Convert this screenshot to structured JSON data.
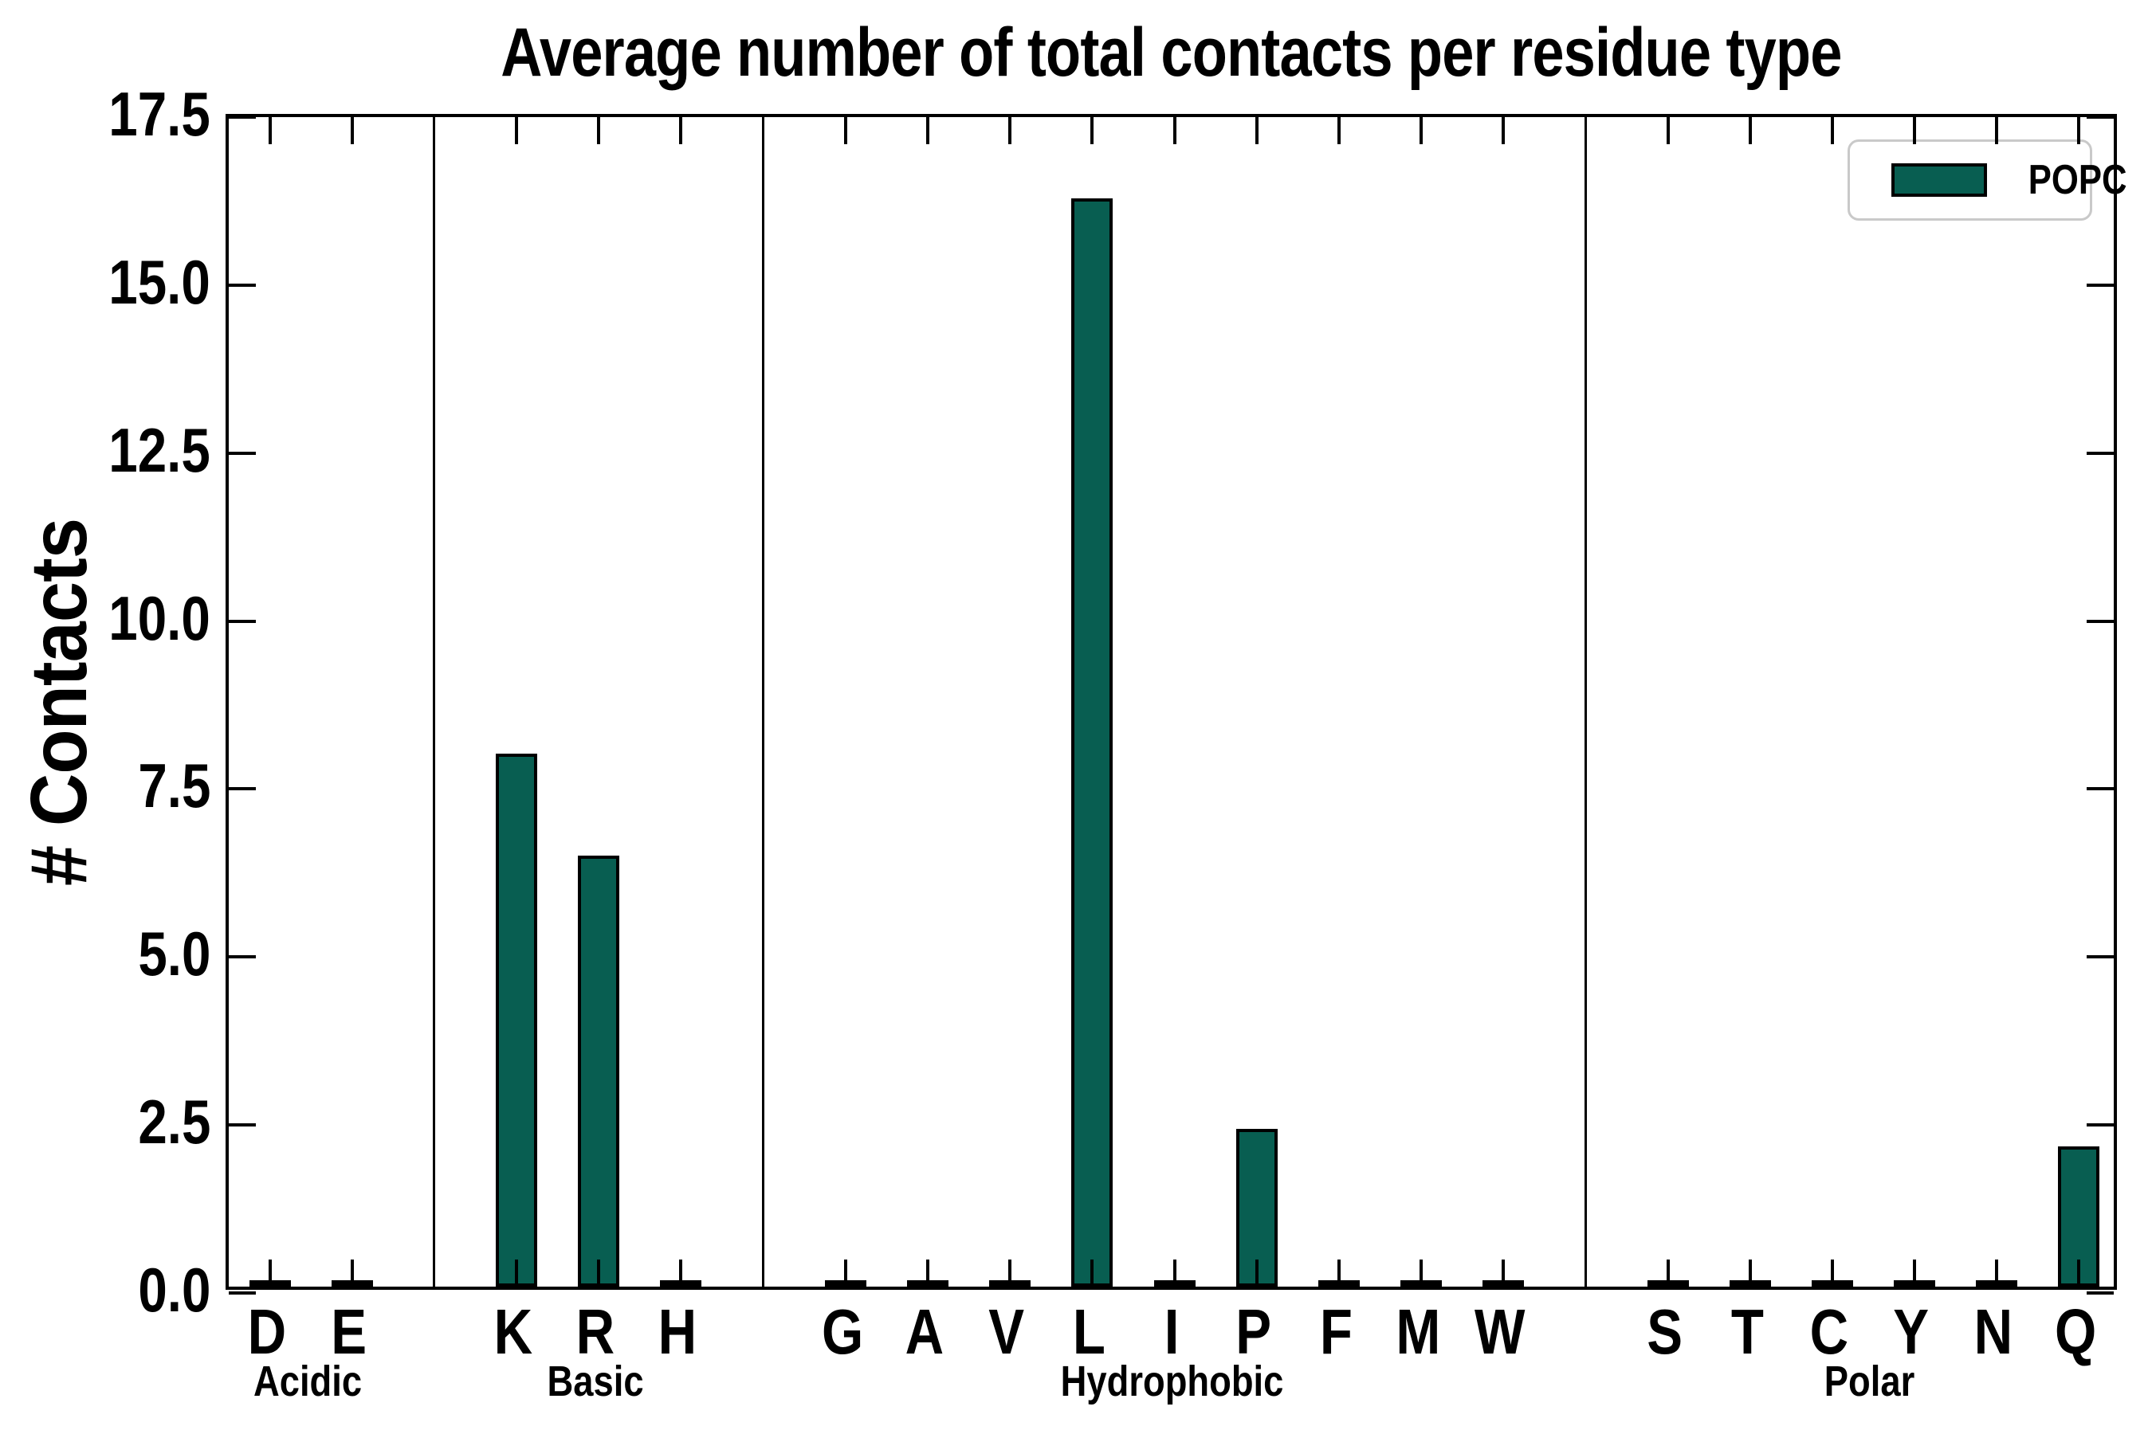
{
  "chart_data": {
    "type": "bar",
    "title": "Average number of total contacts per residue type",
    "ylabel": "# Contacts",
    "xlabel": "",
    "ylim": [
      0,
      17.5
    ],
    "ytick_step": 2.5,
    "ytick_labels": [
      "0.0",
      "2.5",
      "5.0",
      "7.5",
      "10.0",
      "12.5",
      "15.0",
      "17.5"
    ],
    "grid": false,
    "bar_color": "#085e51",
    "bar_edge_color": "#000000",
    "legend": {
      "position": "upper right",
      "entries": [
        {
          "label": "POPC",
          "color": "#085e51"
        }
      ]
    },
    "groups": [
      {
        "label": "Acidic",
        "residues": [
          "D",
          "E"
        ],
        "values": [
          0.03,
          0.03
        ]
      },
      {
        "label": "Basic",
        "residues": [
          "K",
          "R",
          "H"
        ],
        "values": [
          7.93,
          6.41,
          0.03
        ]
      },
      {
        "label": "Hydrophobic",
        "residues": [
          "G",
          "A",
          "V",
          "L",
          "I",
          "P",
          "F",
          "M",
          "W"
        ],
        "values": [
          0.03,
          0.03,
          0.03,
          16.2,
          0.03,
          2.35,
          0.03,
          0.03,
          0.03
        ]
      },
      {
        "label": "Polar",
        "residues": [
          "S",
          "T",
          "C",
          "Y",
          "N",
          "Q"
        ],
        "values": [
          0.03,
          0.03,
          0.03,
          0.03,
          0.03,
          2.09
        ]
      }
    ]
  }
}
